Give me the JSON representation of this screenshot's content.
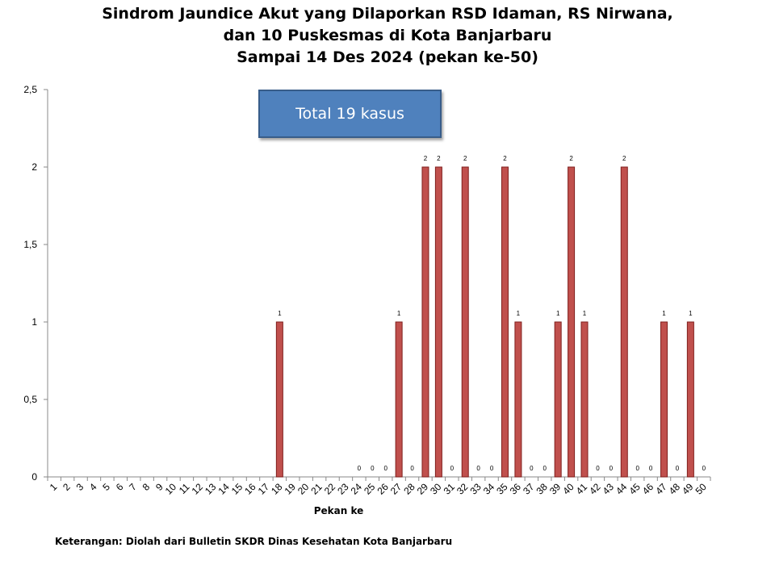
{
  "title_lines": [
    "Sindrom Jaundice Akut yang Dilaporkan RSD Idaman, RS Nirwana,",
    "dan 10 Puskesmas di Kota Banjarbaru",
    "Sampai 14 Des 2024 (pekan ke-50)"
  ],
  "total_box": "Total 19 kasus",
  "note": "Keterangan: Diolah dari Bulletin SKDR Dinas Kesehatan Kota Banjarbaru",
  "colors": {
    "bar_fill": "#c0504d",
    "bar_stroke": "#7f1f1d",
    "box_fill": "#4f81bd"
  },
  "chart_data": {
    "type": "bar",
    "title": "Sindrom Jaundice Akut yang Dilaporkan RSD Idaman, RS Nirwana, dan 10 Puskesmas di Kota Banjarbaru Sampai 14 Des 2024 (pekan ke-50)",
    "xlabel": "Pekan ke",
    "ylabel": "",
    "ylim": [
      0,
      2.5
    ],
    "yticks": [
      "0",
      "0,5",
      "1",
      "1,5",
      "2",
      "2,5"
    ],
    "ytick_values": [
      0,
      0.5,
      1,
      1.5,
      2,
      2.5
    ],
    "grid": false,
    "legend": "none",
    "categories": [
      "1",
      "2",
      "3",
      "4",
      "5",
      "6",
      "7",
      "8",
      "9",
      "10",
      "11",
      "12",
      "13",
      "14",
      "15",
      "16",
      "17",
      "18",
      "19",
      "20",
      "21",
      "22",
      "23",
      "24",
      "25",
      "26",
      "27",
      "28",
      "29",
      "30",
      "31",
      "32",
      "33",
      "34",
      "35",
      "36",
      "37",
      "38",
      "39",
      "40",
      "41",
      "42",
      "43",
      "44",
      "45",
      "46",
      "47",
      "48",
      "49",
      "50"
    ],
    "values": [
      null,
      null,
      null,
      null,
      null,
      null,
      null,
      null,
      null,
      null,
      null,
      null,
      null,
      null,
      null,
      null,
      null,
      1,
      null,
      null,
      null,
      null,
      null,
      0,
      0,
      0,
      1,
      0,
      2,
      2,
      0,
      2,
      0,
      0,
      2,
      1,
      0,
      0,
      1,
      2,
      1,
      0,
      0,
      2,
      0,
      0,
      1,
      0,
      1,
      0
    ]
  }
}
